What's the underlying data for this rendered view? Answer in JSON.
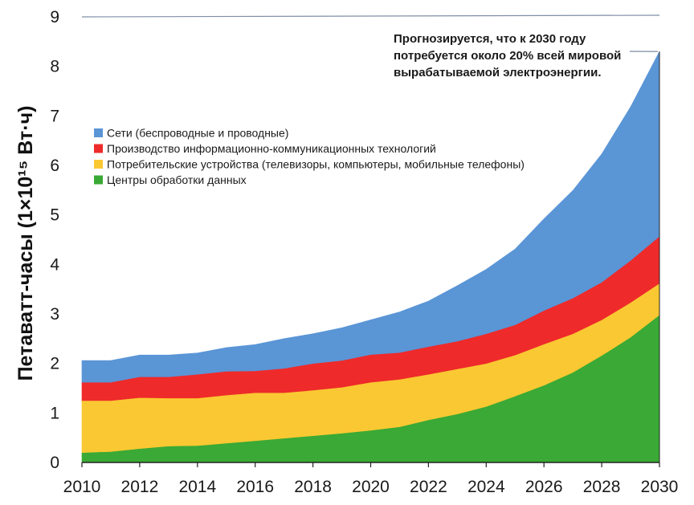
{
  "chart_data": {
    "type": "area",
    "stacked": true,
    "ylabel": "Петаватт-часы (1×10¹⁵ Вт·ч)",
    "ylim": [
      0,
      9
    ],
    "xlim": [
      2010,
      2030
    ],
    "y_ticks": [
      0,
      1,
      2,
      3,
      4,
      5,
      6,
      7,
      8,
      9
    ],
    "x_ticks": [
      2010,
      2012,
      2014,
      2016,
      2018,
      2020,
      2022,
      2024,
      2026,
      2028,
      2030
    ],
    "grid": false,
    "legend_placement": "upper-left",
    "x": [
      2010,
      2011,
      2012,
      2013,
      2014,
      2015,
      2016,
      2017,
      2018,
      2019,
      2020,
      2021,
      2022,
      2023,
      2024,
      2025,
      2026,
      2027,
      2028,
      2029,
      2030
    ],
    "series": [
      {
        "name": "Центры обработки данных",
        "color": "#3aa935",
        "values": [
          0.2,
          0.22,
          0.28,
          0.33,
          0.34,
          0.39,
          0.44,
          0.49,
          0.54,
          0.59,
          0.65,
          0.72,
          0.86,
          0.98,
          1.13,
          1.34,
          1.56,
          1.82,
          2.16,
          2.53,
          2.98
        ]
      },
      {
        "name": "Потребительские устройства (телевизоры, компьютеры, мобильные телефоны)",
        "color": "#fac832",
        "values": [
          1.05,
          1.03,
          1.03,
          0.97,
          0.96,
          0.97,
          0.97,
          0.92,
          0.92,
          0.93,
          0.97,
          0.96,
          0.92,
          0.91,
          0.87,
          0.83,
          0.83,
          0.78,
          0.72,
          0.7,
          0.64
        ]
      },
      {
        "name": "Производство информационно-коммуникационных технологий",
        "color": "#ee2a2a",
        "values": [
          0.37,
          0.37,
          0.42,
          0.43,
          0.48,
          0.48,
          0.44,
          0.49,
          0.54,
          0.54,
          0.56,
          0.54,
          0.56,
          0.56,
          0.6,
          0.61,
          0.68,
          0.72,
          0.76,
          0.85,
          0.95
        ]
      },
      {
        "name": "Сети (беспроводные и проводные)",
        "color": "#5a95d6",
        "values": [
          0.44,
          0.44,
          0.44,
          0.44,
          0.43,
          0.48,
          0.53,
          0.6,
          0.6,
          0.66,
          0.7,
          0.82,
          0.92,
          1.12,
          1.3,
          1.53,
          1.85,
          2.17,
          2.59,
          3.1,
          3.73
        ]
      }
    ],
    "reference_line": {
      "y": 9
    },
    "annotation": {
      "lines": [
        "Прогнозируется, что к 2030 году",
        "потребуется около 20% всей мировой",
        "вырабатываемой электроэнергии."
      ],
      "target": {
        "x": 2030,
        "y": 8.3
      }
    }
  }
}
